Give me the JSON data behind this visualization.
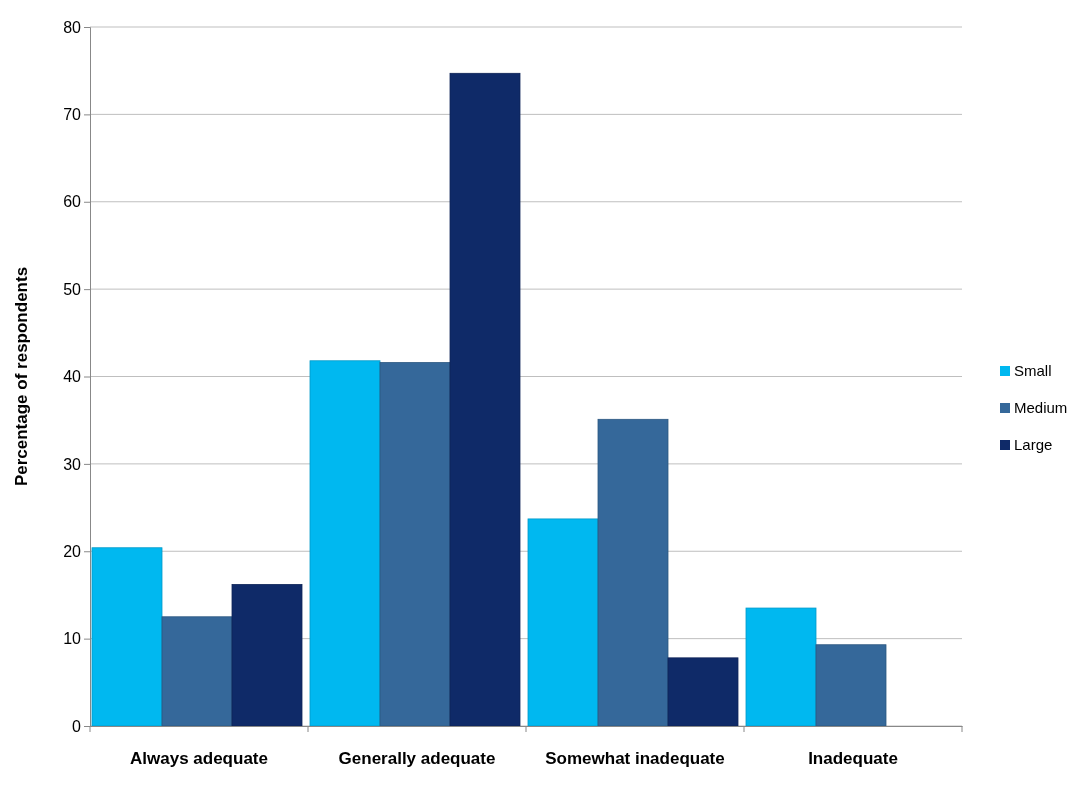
{
  "chart_data": {
    "type": "bar",
    "ylabel": "Percentage of respondents",
    "categories": [
      "Always adequate",
      "Generally adequate",
      "Somewhat inadequate",
      "Inadequate"
    ],
    "series": [
      {
        "name": "Small",
        "color": "#00b8f0",
        "values": [
          20.4,
          41.8,
          23.7,
          13.5
        ]
      },
      {
        "name": "Medium",
        "color": "#35689a",
        "values": [
          12.5,
          41.6,
          35.1,
          9.3
        ]
      },
      {
        "name": "Large",
        "color": "#0f2a68",
        "values": [
          16.2,
          74.7,
          7.8,
          null
        ]
      }
    ],
    "ylim": [
      0,
      80
    ],
    "yticks": [
      0,
      10,
      20,
      30,
      40,
      50,
      60,
      70,
      80
    ],
    "grid": "y",
    "legend": "right"
  }
}
